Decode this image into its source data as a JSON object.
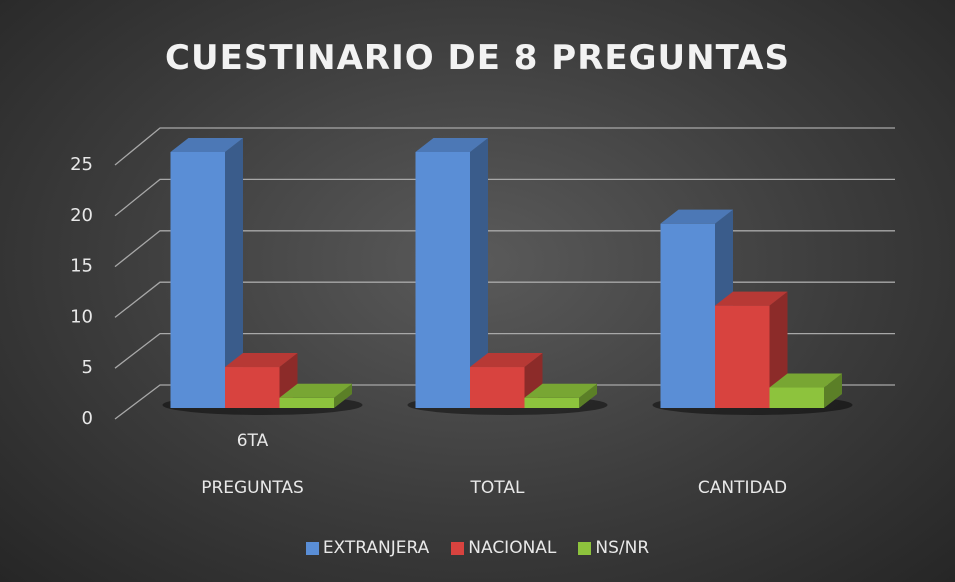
{
  "chart_data": {
    "type": "bar3d",
    "title": "CUESTINARIO DE 8 PREGUNTAS",
    "categories": [
      "6TA\nPREGUNTAS",
      "TOTAL",
      "CANTIDAD"
    ],
    "series": [
      {
        "name": "EXTRANJERA",
        "color": "#5a8ed6",
        "values": [
          25,
          25,
          18
        ]
      },
      {
        "name": "NACIONAL",
        "color": "#d8433f",
        "values": [
          4,
          4,
          10
        ]
      },
      {
        "name": "NS/NR",
        "color": "#8dc33d",
        "values": [
          1,
          1,
          2
        ]
      }
    ],
    "ylim": [
      0,
      25
    ],
    "yticks": [
      0,
      5,
      10,
      15,
      20,
      25
    ],
    "grid": true,
    "legend": "bottom"
  }
}
